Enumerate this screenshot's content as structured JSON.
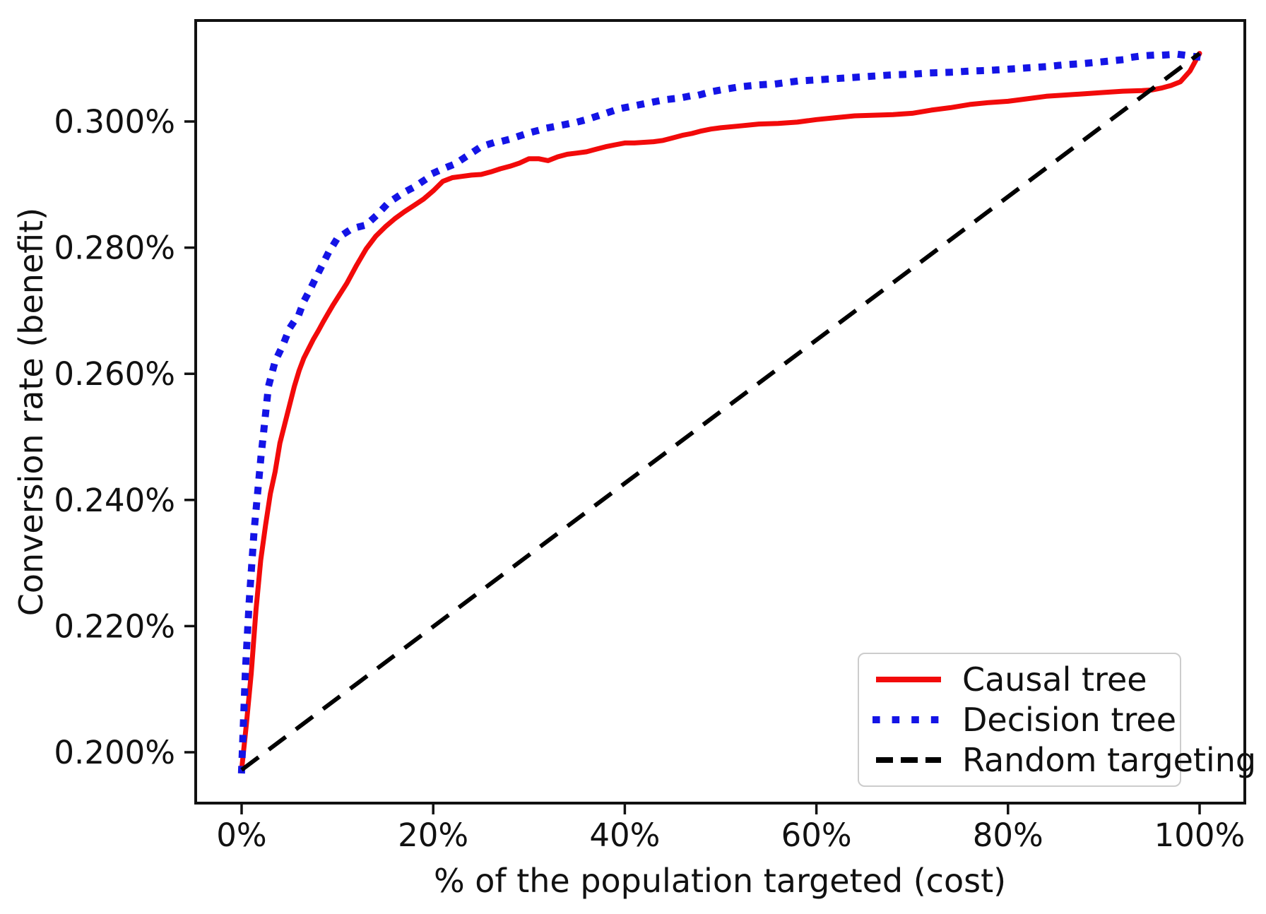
{
  "figure": {
    "background": "#ffffff",
    "text_color": "#111111"
  },
  "chart_data": {
    "type": "line",
    "title": "",
    "xlabel": "% of the population targeted (cost)",
    "ylabel": "Conversion rate (benefit)",
    "xlim": [
      -5,
      105
    ],
    "ylim": [
      0.1918,
      0.3161
    ],
    "grid": false,
    "x_ticks": {
      "values": [
        0,
        20,
        40,
        60,
        80,
        100
      ],
      "labels": [
        "0%",
        "20%",
        "40%",
        "60%",
        "80%",
        "100%"
      ]
    },
    "y_ticks": {
      "values": [
        0.2,
        0.22,
        0.24,
        0.26,
        0.28,
        0.3
      ],
      "labels": [
        "0.200%",
        "0.220%",
        "0.240%",
        "0.260%",
        "0.280%",
        "0.300%"
      ]
    },
    "legend": {
      "position": "lower right",
      "entries": [
        "Causal tree",
        "Decision tree",
        "Random targeting"
      ]
    },
    "series": [
      {
        "name": "Causal tree",
        "style": "solid",
        "color": "#f20a0a",
        "width": 7,
        "points": [
          [
            0,
            0.1972
          ],
          [
            0.5,
            0.2045
          ],
          [
            1,
            0.2125
          ],
          [
            1.5,
            0.2225
          ],
          [
            2,
            0.2305
          ],
          [
            2.5,
            0.236
          ],
          [
            3,
            0.241
          ],
          [
            3.5,
            0.2445
          ],
          [
            4,
            0.249
          ],
          [
            4.5,
            0.252
          ],
          [
            5,
            0.255
          ],
          [
            5.5,
            0.258
          ],
          [
            6,
            0.2605
          ],
          [
            6.5,
            0.2625
          ],
          [
            7,
            0.264
          ],
          [
            7.5,
            0.2655
          ],
          [
            8,
            0.2668
          ],
          [
            8.5,
            0.2682
          ],
          [
            9,
            0.2695
          ],
          [
            9.5,
            0.2708
          ],
          [
            10,
            0.272
          ],
          [
            11,
            0.2744
          ],
          [
            12,
            0.2772
          ],
          [
            13,
            0.2798
          ],
          [
            14,
            0.2818
          ],
          [
            15,
            0.2833
          ],
          [
            16,
            0.2846
          ],
          [
            17,
            0.2857
          ],
          [
            18,
            0.2867
          ],
          [
            19,
            0.2877
          ],
          [
            20,
            0.289
          ],
          [
            21,
            0.2905
          ],
          [
            22,
            0.2911
          ],
          [
            23,
            0.2913
          ],
          [
            24,
            0.2915
          ],
          [
            25,
            0.2916
          ],
          [
            26,
            0.292
          ],
          [
            27,
            0.2925
          ],
          [
            28,
            0.2929
          ],
          [
            29,
            0.2934
          ],
          [
            30,
            0.2941
          ],
          [
            31,
            0.2941
          ],
          [
            32,
            0.2938
          ],
          [
            33,
            0.2944
          ],
          [
            34,
            0.2948
          ],
          [
            35,
            0.295
          ],
          [
            36,
            0.2952
          ],
          [
            37,
            0.2956
          ],
          [
            38,
            0.296
          ],
          [
            39,
            0.2963
          ],
          [
            40,
            0.2966
          ],
          [
            41,
            0.2966
          ],
          [
            42,
            0.2967
          ],
          [
            43,
            0.2968
          ],
          [
            44,
            0.297
          ],
          [
            45,
            0.2974
          ],
          [
            46,
            0.2978
          ],
          [
            47,
            0.2981
          ],
          [
            48,
            0.2985
          ],
          [
            49,
            0.2988
          ],
          [
            50,
            0.299
          ],
          [
            52,
            0.2993
          ],
          [
            54,
            0.2996
          ],
          [
            56,
            0.2997
          ],
          [
            58,
            0.2999
          ],
          [
            60,
            0.3003
          ],
          [
            62,
            0.3006
          ],
          [
            64,
            0.3009
          ],
          [
            66,
            0.301
          ],
          [
            68,
            0.3011
          ],
          [
            70,
            0.3013
          ],
          [
            72,
            0.3018
          ],
          [
            74,
            0.3022
          ],
          [
            76,
            0.3027
          ],
          [
            78,
            0.303
          ],
          [
            80,
            0.3032
          ],
          [
            82,
            0.3036
          ],
          [
            84,
            0.304
          ],
          [
            86,
            0.3042
          ],
          [
            88,
            0.3044
          ],
          [
            90,
            0.3046
          ],
          [
            92,
            0.3048
          ],
          [
            94,
            0.3049
          ],
          [
            95,
            0.305
          ],
          [
            96,
            0.3053
          ],
          [
            97,
            0.3057
          ],
          [
            98,
            0.3063
          ],
          [
            99,
            0.308
          ],
          [
            100,
            0.3108
          ]
        ]
      },
      {
        "name": "Decision tree",
        "style": "dotted",
        "color": "#1414e6",
        "width": 10,
        "points": [
          [
            0,
            0.1972
          ],
          [
            0.4,
            0.213
          ],
          [
            0.8,
            0.224
          ],
          [
            1.3,
            0.235
          ],
          [
            2,
            0.2465
          ],
          [
            2.8,
            0.258
          ],
          [
            3.5,
            0.262
          ],
          [
            4.3,
            0.2645
          ],
          [
            5,
            0.2672
          ],
          [
            6,
            0.2695
          ],
          [
            6.5,
            0.2715
          ],
          [
            7.2,
            0.2735
          ],
          [
            8,
            0.276
          ],
          [
            9,
            0.279
          ],
          [
            10,
            0.2815
          ],
          [
            11,
            0.2825
          ],
          [
            12,
            0.2832
          ],
          [
            13,
            0.2836
          ],
          [
            14,
            0.285
          ],
          [
            15,
            0.2866
          ],
          [
            16,
            0.2878
          ],
          [
            17,
            0.2888
          ],
          [
            18,
            0.2896
          ],
          [
            19,
            0.2906
          ],
          [
            20,
            0.2918
          ],
          [
            21,
            0.2925
          ],
          [
            22,
            0.2931
          ],
          [
            23,
            0.294
          ],
          [
            24,
            0.295
          ],
          [
            25,
            0.296
          ],
          [
            26,
            0.2965
          ],
          [
            27,
            0.2968
          ],
          [
            28,
            0.2972
          ],
          [
            29,
            0.2977
          ],
          [
            30,
            0.2982
          ],
          [
            31,
            0.2986
          ],
          [
            32,
            0.299
          ],
          [
            33,
            0.2993
          ],
          [
            34,
            0.2996
          ],
          [
            35,
            0.2999
          ],
          [
            36,
            0.3003
          ],
          [
            37,
            0.3008
          ],
          [
            38,
            0.3013
          ],
          [
            39,
            0.3018
          ],
          [
            40,
            0.3022
          ],
          [
            41,
            0.3025
          ],
          [
            42,
            0.3028
          ],
          [
            43,
            0.3031
          ],
          [
            44,
            0.3034
          ],
          [
            45,
            0.3036
          ],
          [
            46,
            0.3038
          ],
          [
            47,
            0.3041
          ],
          [
            48,
            0.3043
          ],
          [
            49,
            0.3047
          ],
          [
            50,
            0.305
          ],
          [
            52,
            0.3055
          ],
          [
            54,
            0.3058
          ],
          [
            56,
            0.306
          ],
          [
            58,
            0.3064
          ],
          [
            60,
            0.3066
          ],
          [
            62,
            0.3068
          ],
          [
            64,
            0.307
          ],
          [
            66,
            0.3072
          ],
          [
            68,
            0.3074
          ],
          [
            70,
            0.3075
          ],
          [
            72,
            0.3077
          ],
          [
            74,
            0.3078
          ],
          [
            76,
            0.308
          ],
          [
            78,
            0.3081
          ],
          [
            80,
            0.3083
          ],
          [
            82,
            0.3085
          ],
          [
            84,
            0.3087
          ],
          [
            86,
            0.309
          ],
          [
            88,
            0.3092
          ],
          [
            90,
            0.3095
          ],
          [
            92,
            0.3098
          ],
          [
            93,
            0.3102
          ],
          [
            94,
            0.3104
          ],
          [
            95,
            0.3105
          ],
          [
            96,
            0.3105
          ],
          [
            97,
            0.3106
          ],
          [
            98,
            0.3106
          ],
          [
            99,
            0.3104
          ],
          [
            100,
            0.3102
          ]
        ]
      },
      {
        "name": "Random targeting",
        "style": "dashed",
        "color": "#000000",
        "width": 6,
        "points": [
          [
            0,
            0.1972
          ],
          [
            100,
            0.3108
          ]
        ]
      }
    ]
  }
}
